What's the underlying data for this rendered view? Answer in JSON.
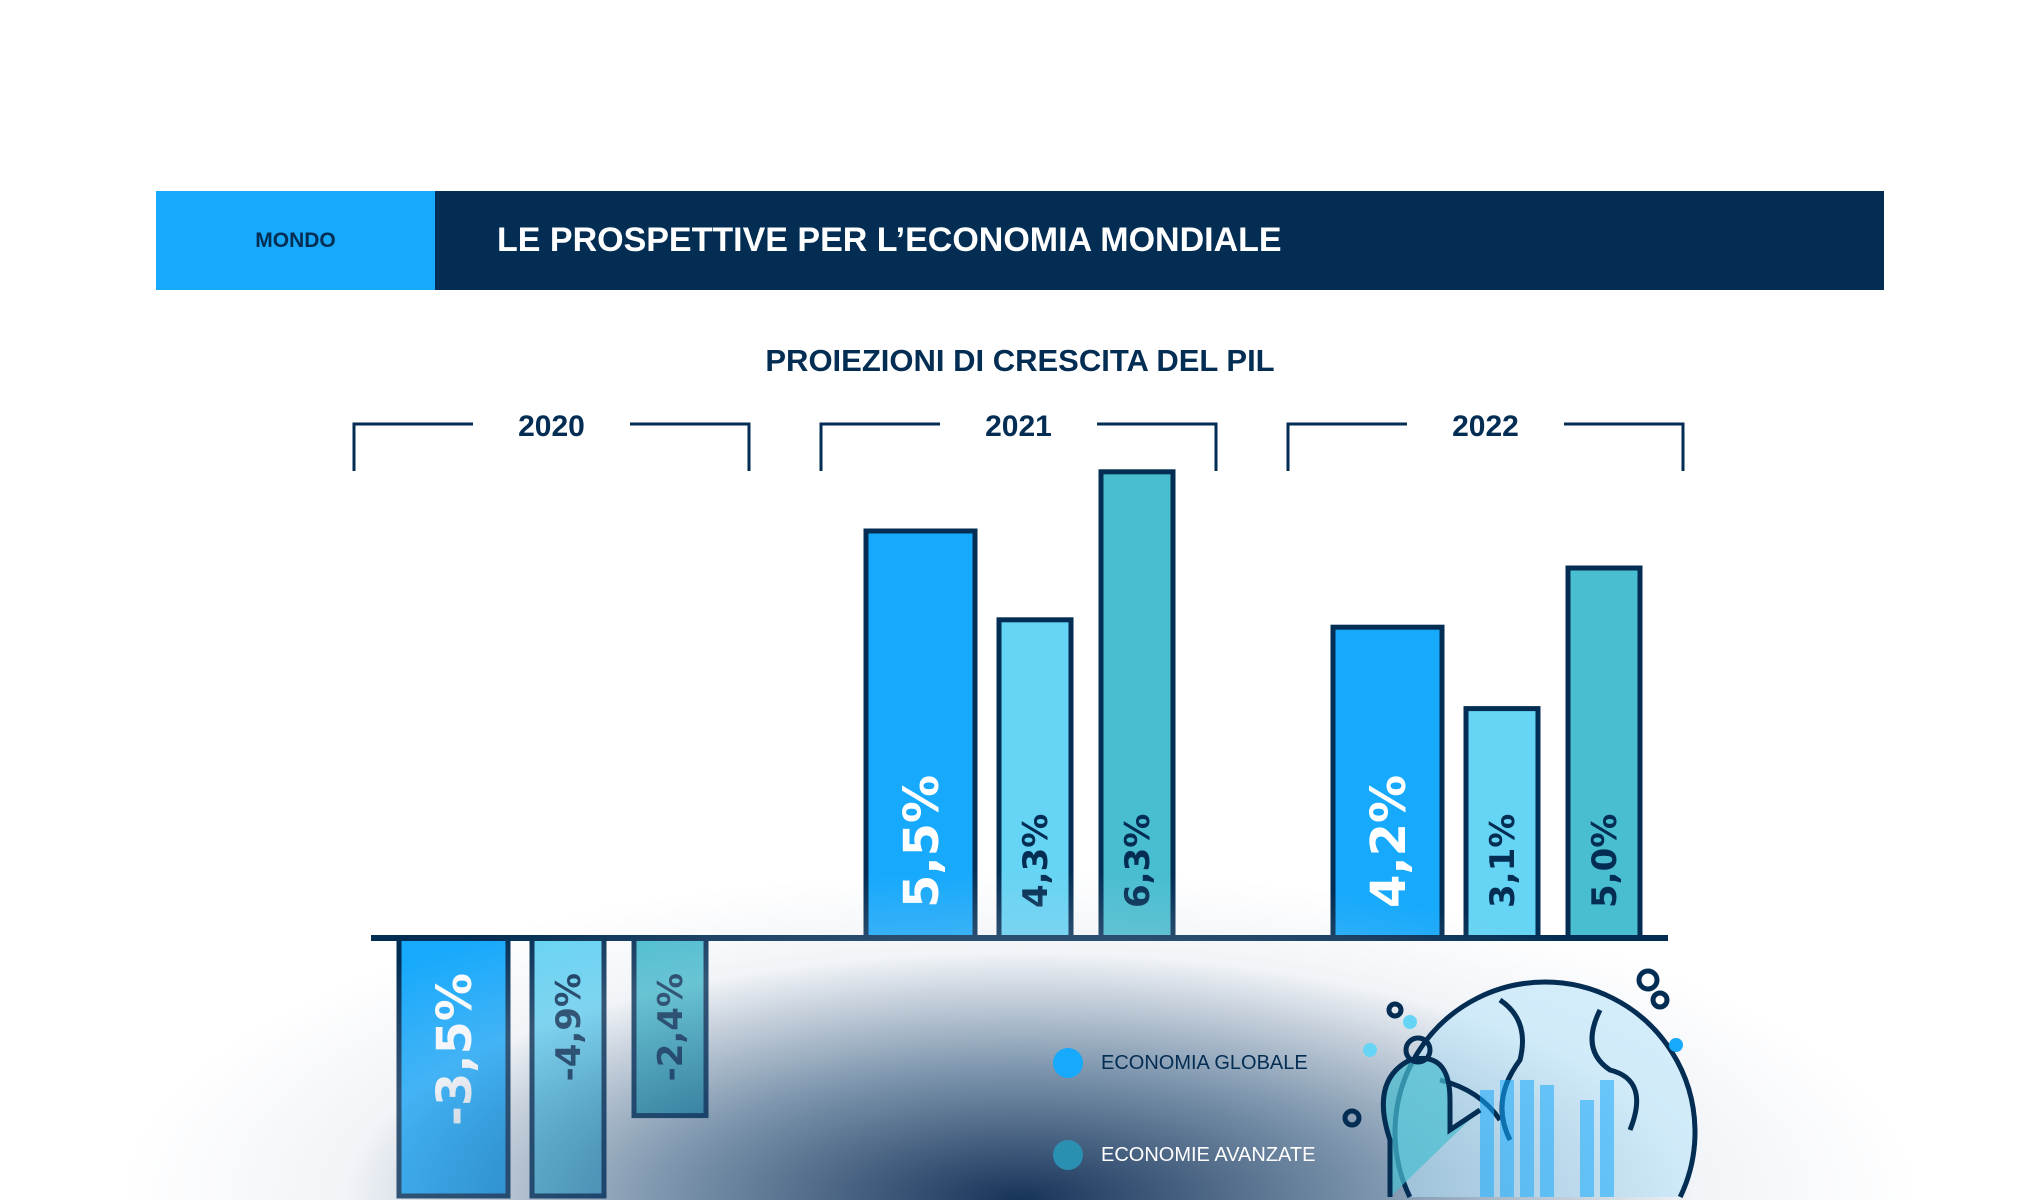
{
  "header": {
    "tag": "MONDO",
    "title": "LE PROSPETTIVE PER L’ECONOMIA MONDIALE"
  },
  "colors": {
    "navy": "#032d53",
    "global": "#16a9fc",
    "advanced": "#66d4f4",
    "emerging": "#48bed0"
  },
  "chart_data": {
    "type": "bar",
    "title": "PROIEZIONI DI CRESCITA DEL PIL",
    "categories": [
      "2020",
      "2021",
      "2022"
    ],
    "series": [
      {
        "name": "ECONOMIA GLOBALE",
        "values": [
          -3.5,
          5.5,
          4.2
        ],
        "labels": [
          "-3,5%",
          "5,5%",
          "4,2%"
        ]
      },
      {
        "name": "ECONOMIE AVANZATE",
        "values": [
          -4.9,
          4.3,
          3.1
        ],
        "labels": [
          "-4,9%",
          "4,3%",
          "3,1%"
        ]
      },
      {
        "values": [
          -2.4,
          6.3,
          5.0
        ],
        "labels": [
          "-2,4%",
          "6,3%",
          "5,0%"
        ]
      }
    ],
    "legend": "bottom-center",
    "grid": false
  },
  "illustration": "globe-with-person-icon"
}
